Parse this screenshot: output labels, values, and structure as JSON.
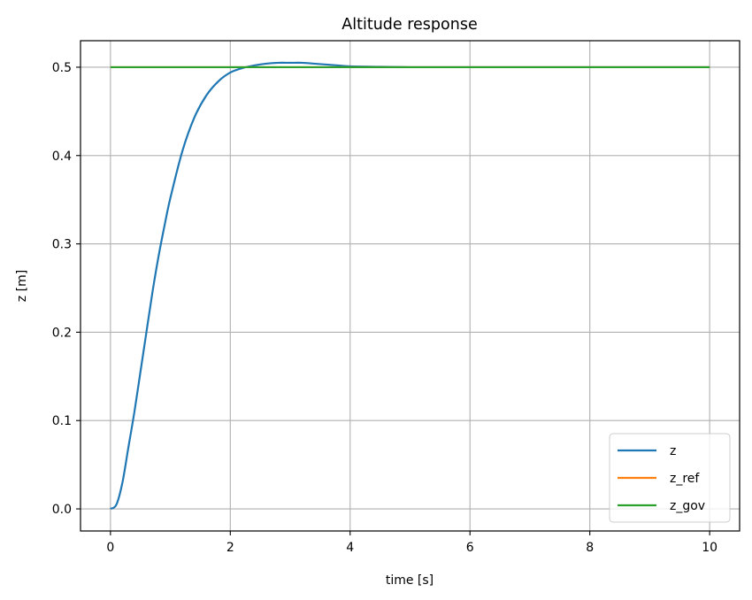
{
  "chart_data": {
    "type": "line",
    "title": "Altitude response",
    "xlabel": "time [s]",
    "ylabel": "z [m]",
    "xlim": [
      -0.5,
      10.5
    ],
    "ylim": [
      -0.025,
      0.53
    ],
    "x_ticks": [
      0,
      2,
      4,
      6,
      8,
      10
    ],
    "x_tick_labels": [
      "0",
      "2",
      "4",
      "6",
      "8",
      "10"
    ],
    "y_ticks": [
      0.0,
      0.1,
      0.2,
      0.3,
      0.4,
      0.5
    ],
    "y_tick_labels": [
      "0.0",
      "0.1",
      "0.2",
      "0.3",
      "0.4",
      "0.5"
    ],
    "grid": true,
    "legend_position": "lower-right",
    "series": [
      {
        "name": "z",
        "color": "#1f77b4",
        "x": [
          0,
          0.1,
          0.2,
          0.3,
          0.4,
          0.5,
          0.6,
          0.7,
          0.8,
          0.9,
          1.0,
          1.2,
          1.4,
          1.6,
          1.8,
          2.0,
          2.2,
          2.4,
          2.6,
          2.8,
          3.0,
          3.2,
          3.4,
          3.6,
          3.8,
          4.0,
          4.5,
          5.0,
          5.5,
          6.0,
          7.0,
          8.0,
          9.0,
          10.0
        ],
        "y": [
          0.0,
          0.005,
          0.03,
          0.07,
          0.11,
          0.155,
          0.2,
          0.245,
          0.285,
          0.32,
          0.352,
          0.405,
          0.443,
          0.468,
          0.484,
          0.494,
          0.499,
          0.502,
          0.504,
          0.505,
          0.505,
          0.505,
          0.504,
          0.503,
          0.502,
          0.501,
          0.5005,
          0.5,
          0.5,
          0.5,
          0.5,
          0.5,
          0.5,
          0.5
        ]
      },
      {
        "name": "z_ref",
        "color": "#ff7f0e",
        "x": [
          0,
          10
        ],
        "y": [
          0.5,
          0.5
        ]
      },
      {
        "name": "z_gov",
        "color": "#2ca02c",
        "x": [
          0,
          10
        ],
        "y": [
          0.5,
          0.5
        ]
      }
    ]
  }
}
